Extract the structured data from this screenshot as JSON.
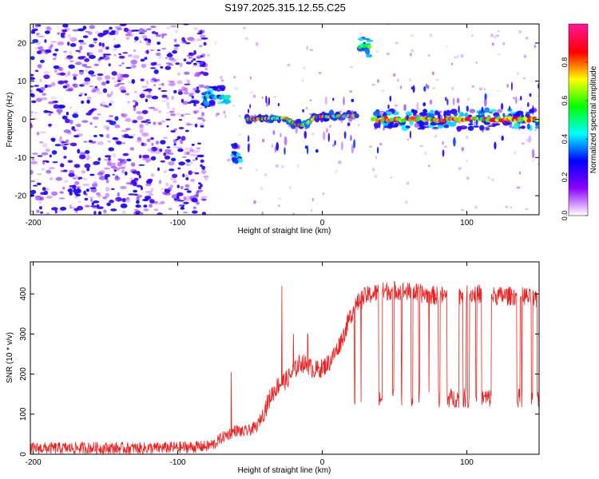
{
  "figure_title": "S197.2025.315.12.55.C25",
  "chart_data": [
    {
      "type": "heatmap",
      "name": "spectrogram",
      "xlabel": "Height of straight line (km)",
      "ylabel": "Frequency (Hz)",
      "xlim": [
        -202,
        150
      ],
      "ylim": [
        -25,
        25
      ],
      "xticks": [
        -200,
        -100,
        0,
        100
      ],
      "xtick_labels": [
        "-200",
        "-100",
        "0",
        "100"
      ],
      "yticks": [
        -20,
        -10,
        0,
        10,
        20
      ],
      "ytick_labels": [
        "-20",
        "-10",
        "0",
        "10",
        "20"
      ],
      "colorbar": {
        "label": "Normalized spectral amplitude",
        "range": [
          0,
          1
        ],
        "ticks": [
          0,
          0.2,
          0.4,
          0.6,
          0.8
        ],
        "tick_labels": [
          "0.0",
          "0.2",
          "0.4",
          "0.6",
          "0.8"
        ],
        "colormap": [
          "#ffffff",
          "#8b00ff",
          "#0000ff",
          "#00ffff",
          "#00ff00",
          "#ffff00",
          "#ff0000",
          "#ff1493"
        ]
      },
      "features": [
        {
          "label": "diffuse noise",
          "x_range": [
            -202,
            -80
          ],
          "freq_range": [
            -25,
            25
          ],
          "peak_amplitude": 0.25
        },
        {
          "label": "onset cluster",
          "x_range": [
            -82,
            -65
          ],
          "freq_center": 6,
          "peak_amplitude": 0.5
        },
        {
          "label": "low tone",
          "x_range": [
            -62,
            -57
          ],
          "freq_center": -9,
          "peak_amplitude": 0.5
        },
        {
          "label": "drifting tone",
          "x_range": [
            -52,
            25
          ],
          "freq_start": 0,
          "freq_end": 1,
          "dip_freq": -2,
          "peak_amplitude": 0.9
        },
        {
          "label": "high tone",
          "x_range": [
            26,
            33
          ],
          "freq_center": 19,
          "peak_amplitude": 0.7
        },
        {
          "label": "steady tone",
          "x_range": [
            35,
            150
          ],
          "freq_center": 0,
          "peak_amplitude": 0.95
        }
      ]
    },
    {
      "type": "line",
      "name": "snr",
      "xlabel": "Height of straight line (km)",
      "ylabel": "SNR (10 * v/v)",
      "xlim": [
        -202,
        150
      ],
      "ylim": [
        0,
        480
      ],
      "xticks": [
        -200,
        -100,
        0,
        100
      ],
      "xtick_labels": [
        "-200",
        "-100",
        "0",
        "100"
      ],
      "yticks": [
        0,
        100,
        200,
        300,
        400
      ],
      "ytick_labels": [
        "0",
        "100",
        "200",
        "300",
        "400"
      ],
      "color": "#ee2222",
      "series": [
        {
          "name": "SNR",
          "x": [
            -202,
            -180,
            -160,
            -140,
            -120,
            -100,
            -90,
            -80,
            -75,
            -70,
            -65,
            -60,
            -55,
            -50,
            -45,
            -40,
            -35,
            -30,
            -25,
            -20,
            -15,
            -10,
            -5,
            0,
            5,
            10,
            15,
            20,
            25,
            30,
            40,
            50,
            60,
            70,
            80,
            90,
            100,
            110,
            120,
            130,
            140,
            150
          ],
          "values": [
            15,
            15,
            16,
            15,
            15,
            17,
            18,
            20,
            25,
            40,
            50,
            60,
            55,
            60,
            70,
            110,
            150,
            175,
            185,
            205,
            230,
            220,
            210,
            215,
            230,
            260,
            300,
            350,
            380,
            395,
            405,
            410,
            405,
            400,
            395,
            395,
            400,
            400,
            395,
            395,
            395,
            380
          ],
          "noise_amplitude": 15,
          "dropout_level": 140,
          "dropout_start_x": 20,
          "spikes": [
            {
              "x": -63,
              "value": 205
            },
            {
              "x": -28,
              "value": 420
            },
            {
              "x": -20,
              "value": 300
            },
            {
              "x": -10,
              "value": 300
            }
          ]
        }
      ]
    }
  ]
}
